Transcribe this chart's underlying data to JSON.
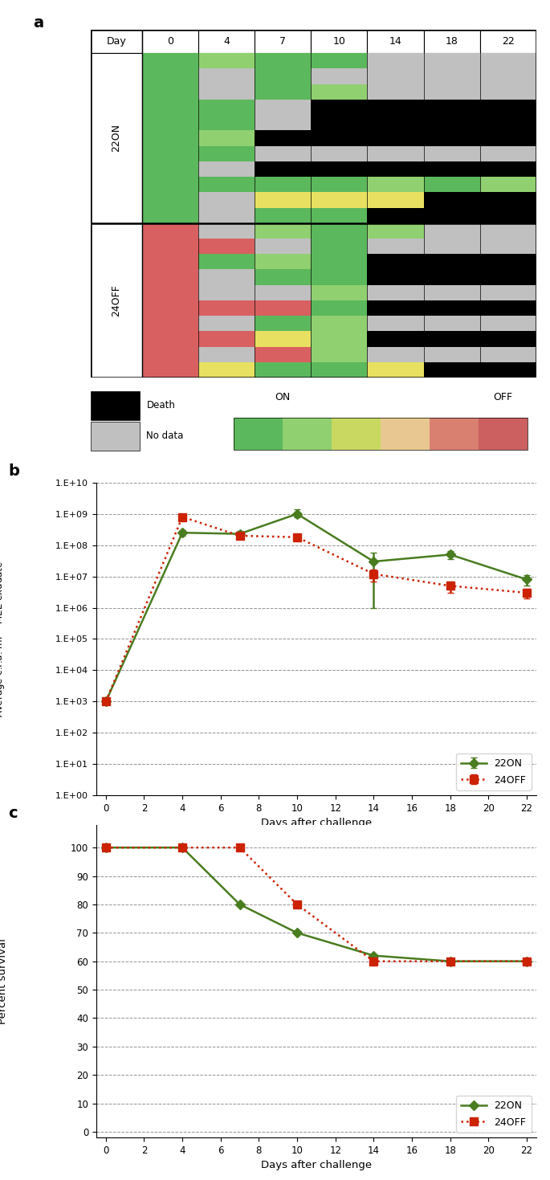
{
  "panel_a": {
    "days": [
      0,
      4,
      7,
      10,
      14,
      18,
      22
    ],
    "group_22ON_label": "22ON",
    "group_24OFF_label": "24OFF",
    "rows_22ON": [
      [
        "green",
        "light_green",
        "green",
        "green",
        "gray",
        "gray",
        "gray"
      ],
      [
        "green",
        "gray",
        "green",
        "gray",
        "gray",
        "gray",
        "gray"
      ],
      [
        "green",
        "gray",
        "green",
        "light_green",
        "gray",
        "gray",
        "gray"
      ],
      [
        "green",
        "green",
        "gray",
        "black",
        "black",
        "black",
        "black"
      ],
      [
        "green",
        "green",
        "gray",
        "black",
        "black",
        "black",
        "black"
      ],
      [
        "green",
        "light_green",
        "black",
        "black",
        "black",
        "black",
        "black"
      ],
      [
        "green",
        "green",
        "gray",
        "gray",
        "gray",
        "gray",
        "gray"
      ],
      [
        "green",
        "gray",
        "black",
        "black",
        "black",
        "black",
        "black"
      ],
      [
        "green",
        "green",
        "green",
        "green",
        "light_green",
        "green",
        "light_green"
      ],
      [
        "green",
        "gray",
        "yellow",
        "yellow",
        "yellow",
        "black",
        "black"
      ],
      [
        "green",
        "gray",
        "green",
        "green",
        "black",
        "black",
        "black"
      ]
    ],
    "rows_24OFF": [
      [
        "red",
        "gray",
        "light_green",
        "green",
        "light_green",
        "gray",
        "gray"
      ],
      [
        "red",
        "red",
        "gray",
        "green",
        "gray",
        "gray",
        "gray"
      ],
      [
        "red",
        "green",
        "light_green",
        "green",
        "black",
        "black",
        "black"
      ],
      [
        "red",
        "gray",
        "green",
        "green",
        "black",
        "black",
        "black"
      ],
      [
        "red",
        "gray",
        "gray",
        "light_green",
        "gray",
        "gray",
        "gray"
      ],
      [
        "red",
        "red",
        "red",
        "green",
        "black",
        "black",
        "black"
      ],
      [
        "red",
        "gray",
        "green",
        "light_green",
        "gray",
        "gray",
        "gray"
      ],
      [
        "red",
        "red",
        "yellow",
        "light_green",
        "black",
        "black",
        "black"
      ],
      [
        "red",
        "gray",
        "red",
        "light_green",
        "gray",
        "gray",
        "gray"
      ],
      [
        "red",
        "yellow",
        "green",
        "green",
        "yellow",
        "black",
        "black"
      ]
    ],
    "color_map": {
      "green": "#5cb85c",
      "light_green": "#90d070",
      "yellow": "#e8e060",
      "light_yellow": "#d4e090",
      "red": "#d96060",
      "gray": "#c0c0c0",
      "black": "#000000",
      "white": "#ffffff"
    },
    "legend_grad_colors": [
      "#5cb85c",
      "#90d070",
      "#c8d860",
      "#e8c890",
      "#d98070",
      "#cc6060"
    ],
    "death_color": "#000000",
    "nodata_color": "#c0c0c0"
  },
  "panel_b": {
    "xlabel": "Days after challenge",
    "ylabel": "Average c.f.u. ml⁻¹ MEE exudate",
    "ytick_labels": [
      "1.E+00",
      "1.E+01",
      "1.E+02",
      "1.E+03",
      "1.E+04",
      "1.E+05",
      "1.E+06",
      "1.E+07",
      "1.E+08",
      "1.E+09",
      "1.E+10"
    ],
    "ytick_values": [
      1.0,
      10.0,
      100.0,
      1000.0,
      10000.0,
      100000.0,
      1000000.0,
      10000000.0,
      100000000.0,
      1000000000.0,
      10000000000.0
    ],
    "series_22ON": {
      "x": [
        0,
        4,
        7,
        10,
        14,
        18,
        22
      ],
      "y": [
        1000.0,
        250000000.0,
        230000000.0,
        1000000000.0,
        30000000.0,
        50000000.0,
        8000000.0
      ],
      "yerr_low": [
        1,
        50000000.0,
        50000000.0,
        200000000.0,
        29000000.0,
        15000000.0,
        3000000.0
      ],
      "yerr_high": [
        1,
        50000000.0,
        50000000.0,
        400000000.0,
        29000000.0,
        15000000.0,
        3000000.0
      ],
      "color": "#4a7c20",
      "marker": "D",
      "label": "22ON"
    },
    "series_24OFF": {
      "x": [
        0,
        4,
        7,
        10,
        14,
        18,
        22
      ],
      "y": [
        1000.0,
        800000000.0,
        200000000.0,
        180000000.0,
        12000000.0,
        5000000.0,
        3000000.0
      ],
      "yerr_low": [
        1,
        100000000.0,
        30000000.0,
        40000000.0,
        5000000.0,
        2000000.0,
        1000000.0
      ],
      "yerr_high": [
        1,
        100000000.0,
        30000000.0,
        40000000.0,
        5000000.0,
        2000000.0,
        1000000.0
      ],
      "color": "#cc2200",
      "marker": "s",
      "label": "24OFF"
    },
    "xticks": [
      0,
      2,
      4,
      6,
      8,
      10,
      12,
      14,
      16,
      18,
      20,
      22
    ],
    "xlim": [
      -0.5,
      22.5
    ]
  },
  "panel_c": {
    "xlabel": "Days after challenge",
    "ylabel": "Percent survival",
    "series_22ON": {
      "x": [
        0,
        4,
        7,
        10,
        14,
        18,
        22
      ],
      "y": [
        100,
        100,
        80,
        70,
        62,
        60,
        60
      ],
      "color": "#4a7c20",
      "marker": "D",
      "label": "22ON"
    },
    "series_24OFF": {
      "x": [
        0,
        4,
        7,
        10,
        14,
        18,
        22
      ],
      "y": [
        100,
        100,
        100,
        80,
        60,
        60,
        60
      ],
      "color": "#cc2200",
      "marker": "s",
      "label": "24OFF"
    },
    "yticks": [
      0,
      10,
      20,
      30,
      40,
      50,
      60,
      70,
      80,
      90,
      100
    ],
    "xticks": [
      0,
      2,
      4,
      6,
      8,
      10,
      12,
      14,
      16,
      18,
      20,
      22
    ],
    "xlim": [
      -0.5,
      22.5
    ],
    "ylim": [
      -2,
      108
    ]
  }
}
